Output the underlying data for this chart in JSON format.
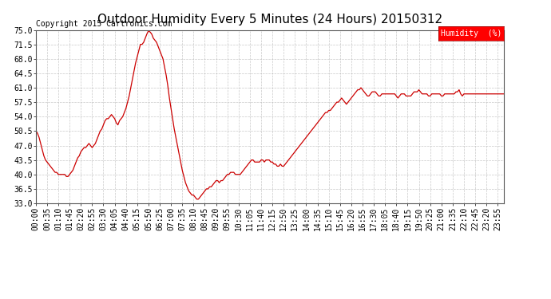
{
  "title": "Outdoor Humidity Every 5 Minutes (24 Hours) 20150312",
  "copyright_text": "Copyright 2015 Cartronics.com",
  "legend_label": "Humidity  (%)",
  "line_color": "#cc0000",
  "background_color": "#ffffff",
  "grid_color": "#bbbbbb",
  "ylim": [
    33.0,
    75.0
  ],
  "yticks": [
    33.0,
    36.5,
    40.0,
    43.5,
    47.0,
    50.5,
    54.0,
    57.5,
    61.0,
    64.5,
    68.0,
    71.5,
    75.0
  ],
  "title_fontsize": 11,
  "copyright_fontsize": 7,
  "xtick_labels": [
    "00:00",
    "00:35",
    "01:10",
    "01:45",
    "02:20",
    "02:55",
    "03:30",
    "04:05",
    "04:40",
    "05:15",
    "05:50",
    "06:25",
    "07:00",
    "07:35",
    "08:10",
    "08:45",
    "09:20",
    "09:55",
    "10:30",
    "11:05",
    "11:40",
    "12:15",
    "12:50",
    "13:25",
    "14:00",
    "14:35",
    "15:10",
    "15:45",
    "16:20",
    "16:55",
    "17:30",
    "18:05",
    "18:40",
    "19:15",
    "19:50",
    "20:25",
    "21:00",
    "21:35",
    "22:10",
    "22:45",
    "23:20",
    "23:55"
  ],
  "humidity_values": [
    50.5,
    50.0,
    49.0,
    47.5,
    46.0,
    44.5,
    43.5,
    43.0,
    42.5,
    42.0,
    41.5,
    41.0,
    40.5,
    40.5,
    40.0,
    40.0,
    40.0,
    40.0,
    40.0,
    39.5,
    39.5,
    40.0,
    40.5,
    41.0,
    42.0,
    43.0,
    44.0,
    44.5,
    45.5,
    46.0,
    46.5,
    46.5,
    47.0,
    47.5,
    47.0,
    46.5,
    47.0,
    47.5,
    48.5,
    49.5,
    50.5,
    51.0,
    52.0,
    53.0,
    53.5,
    53.5,
    54.0,
    54.5,
    54.0,
    53.5,
    52.5,
    52.0,
    53.0,
    53.5,
    54.0,
    55.0,
    56.0,
    57.5,
    59.0,
    61.0,
    63.0,
    65.0,
    67.0,
    68.5,
    70.0,
    71.5,
    71.5,
    72.0,
    73.0,
    74.0,
    74.8,
    74.5,
    74.0,
    73.0,
    72.5,
    72.0,
    71.0,
    70.0,
    69.0,
    68.0,
    66.0,
    64.0,
    61.5,
    58.5,
    56.0,
    53.5,
    51.0,
    49.0,
    47.0,
    45.0,
    43.0,
    41.0,
    39.5,
    38.0,
    37.0,
    36.0,
    35.5,
    35.0,
    35.0,
    34.5,
    34.0,
    34.0,
    34.5,
    35.0,
    35.5,
    36.0,
    36.5,
    36.5,
    37.0,
    37.0,
    37.5,
    38.0,
    38.5,
    38.5,
    38.0,
    38.5,
    38.5,
    39.0,
    39.5,
    40.0,
    40.0,
    40.5,
    40.5,
    40.5,
    40.0,
    40.0,
    40.0,
    40.0,
    40.5,
    41.0,
    41.5,
    42.0,
    42.5,
    43.0,
    43.5,
    43.5,
    43.0,
    43.0,
    43.0,
    43.0,
    43.5,
    43.5,
    43.0,
    43.5,
    43.5,
    43.5,
    43.0,
    43.0,
    42.5,
    42.5,
    42.0,
    42.0,
    42.5,
    42.0,
    42.0,
    42.5,
    43.0,
    43.5,
    44.0,
    44.5,
    45.0,
    45.5,
    46.0,
    46.5,
    47.0,
    47.5,
    48.0,
    48.5,
    49.0,
    49.5,
    50.0,
    50.5,
    51.0,
    51.5,
    52.0,
    52.5,
    53.0,
    53.5,
    54.0,
    54.5,
    55.0,
    55.0,
    55.5,
    55.5,
    56.0,
    56.5,
    57.0,
    57.5,
    57.5,
    58.0,
    58.5,
    58.0,
    57.5,
    57.0,
    57.5,
    58.0,
    58.5,
    59.0,
    59.5,
    60.0,
    60.5,
    60.5,
    61.0,
    60.5,
    60.0,
    59.5,
    59.0,
    59.0,
    59.5,
    60.0,
    60.0,
    60.0,
    59.5,
    59.0,
    59.0,
    59.5,
    59.5,
    59.5,
    59.5,
    59.5,
    59.5,
    59.5,
    59.5,
    59.5,
    59.0,
    58.5,
    59.0,
    59.5,
    59.5,
    59.5,
    59.0,
    59.0,
    59.0,
    59.0,
    59.5,
    60.0,
    60.0,
    60.0,
    60.5,
    60.0,
    59.5,
    59.5,
    59.5,
    59.5,
    59.0,
    59.0,
    59.5,
    59.5,
    59.5,
    59.5,
    59.5,
    59.5,
    59.0,
    59.0,
    59.5,
    59.5,
    59.5,
    59.5,
    59.5,
    59.5,
    59.5,
    60.0,
    60.0,
    60.5,
    59.5,
    59.0,
    59.5,
    59.5,
    59.5,
    59.5,
    59.5,
    59.5,
    59.5,
    59.5,
    59.5,
    59.5,
    59.5,
    59.5,
    59.5,
    59.5,
    59.5,
    59.5,
    59.5,
    59.5,
    59.5,
    59.5,
    59.5,
    59.5,
    59.5,
    59.5,
    59.5,
    59.5
  ]
}
